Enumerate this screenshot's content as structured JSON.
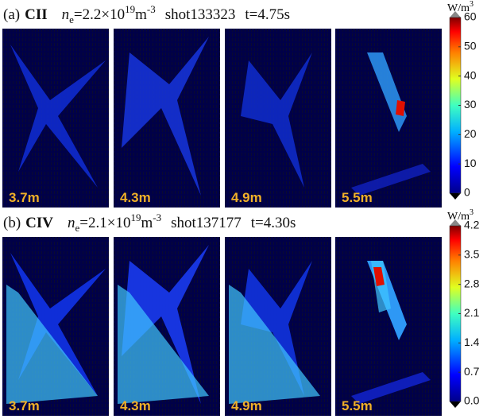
{
  "panels": [
    {
      "label": "(a)",
      "species": "CII",
      "ne_symbol": "n",
      "ne_sub": "e",
      "ne_value": "=2.2×10",
      "ne_exp": "19",
      "ne_unit": "m",
      "ne_unit_exp": "-3",
      "shot": "shot133323",
      "time": "t=4.75s",
      "images": [
        "3.7m",
        "4.3m",
        "4.9m",
        "5.5m"
      ],
      "colorbar": {
        "unit": "W/m",
        "unit_exp": "3",
        "ylim": [
          0,
          60
        ],
        "yticks": [
          0,
          10,
          20,
          30,
          40,
          50,
          60
        ]
      }
    },
    {
      "label": "(b)",
      "species": "CIV",
      "ne_symbol": "n",
      "ne_sub": "e",
      "ne_value": "=2.1×10",
      "ne_exp": "19",
      "ne_unit": "m",
      "ne_unit_exp": "-3",
      "shot": "shot137177",
      "time": "t=4.30s",
      "images": [
        "3.7m",
        "4.3m",
        "4.9m",
        "5.5m"
      ],
      "colorbar": {
        "unit": "W/m",
        "unit_exp": "3",
        "ylim": [
          0,
          4.2
        ],
        "yticks": [
          {
            "value": 0,
            "label": "0.0"
          },
          0.7,
          1.4,
          2.1,
          2.8,
          3.5,
          4.2
        ]
      }
    }
  ]
}
